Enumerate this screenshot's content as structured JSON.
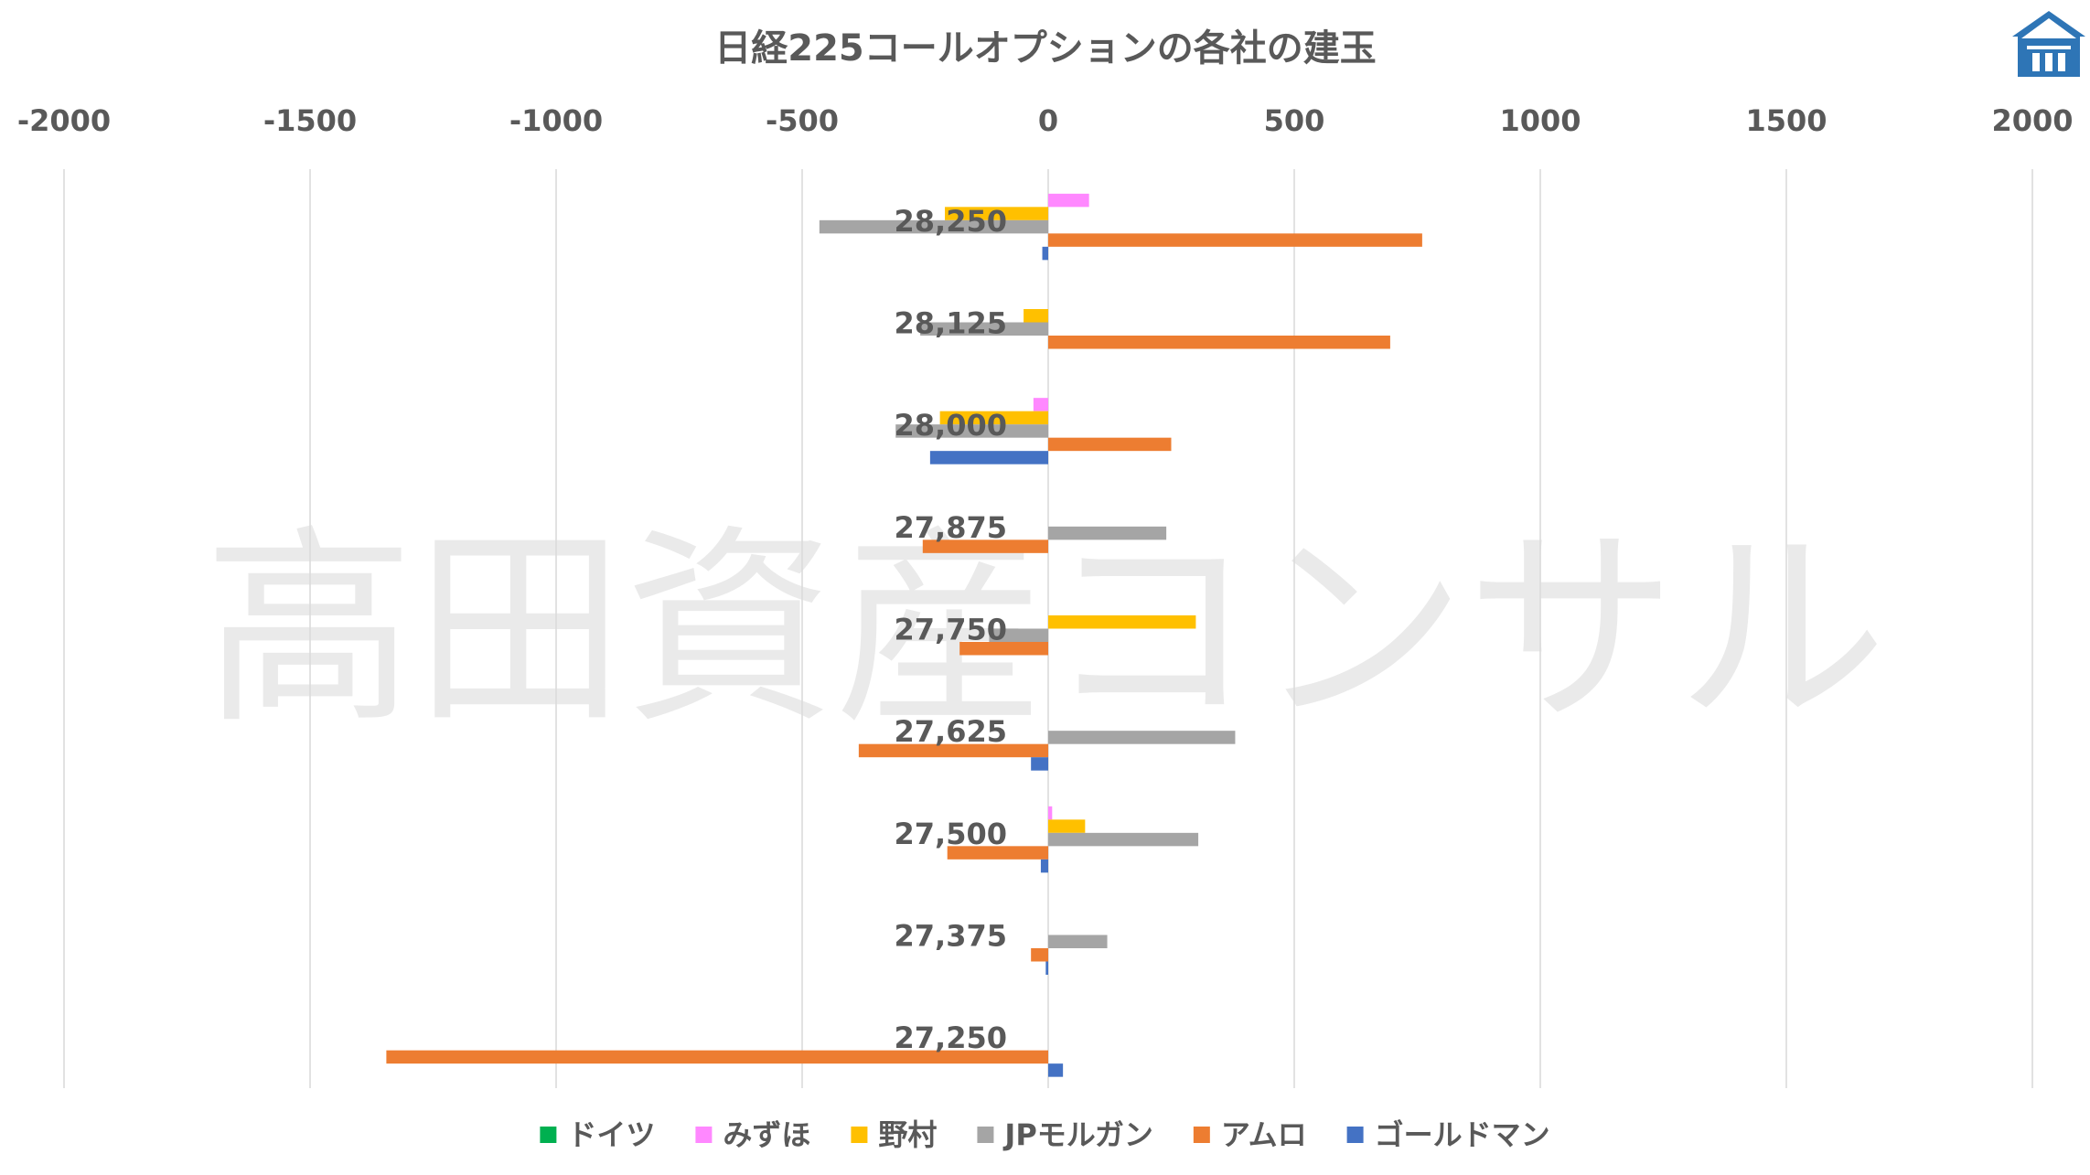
{
  "chart_data": {
    "type": "bar",
    "orientation": "horizontal",
    "title": "日経225コールオプションの各社の建玉",
    "xlim": [
      -2000,
      2000
    ],
    "x_ticks": [
      "-2000",
      "-1500",
      "-1000",
      "-500",
      "0",
      "500",
      "1000",
      "1500",
      "2000"
    ],
    "x_tick_values": [
      -2000,
      -1500,
      -1000,
      -500,
      0,
      500,
      1000,
      1500,
      2000
    ],
    "categories": [
      "28,250",
      "28,125",
      "28,000",
      "27,875",
      "27,750",
      "27,625",
      "27,500",
      "27,375",
      "27,250"
    ],
    "series": [
      {
        "name": "ドイツ",
        "color": "#00b050",
        "values": [
          0,
          0,
          0,
          0,
          0,
          0,
          0,
          0,
          0
        ]
      },
      {
        "name": "みずほ",
        "color": "#ff88ff",
        "values": [
          83,
          0,
          -30,
          0,
          0,
          0,
          8,
          0,
          0
        ]
      },
      {
        "name": "野村",
        "color": "#ffc000",
        "values": [
          -210,
          -50,
          -220,
          0,
          300,
          0,
          75,
          0,
          0
        ]
      },
      {
        "name": "JPモルガン",
        "color": "#a5a5a5",
        "values": [
          -465,
          -260,
          -310,
          240,
          -120,
          380,
          305,
          120,
          0
        ]
      },
      {
        "name": "アムロ",
        "color": "#ed7d31",
        "values": [
          760,
          695,
          250,
          -255,
          -180,
          -385,
          -205,
          -35,
          -1345
        ]
      },
      {
        "name": "ゴールドマン",
        "color": "#4472c4",
        "values": [
          -12,
          0,
          -240,
          0,
          0,
          -35,
          -15,
          -5,
          30
        ]
      }
    ],
    "grid": "vertical",
    "legend_position": "bottom"
  },
  "watermark": {
    "text": "高田資産コンサル"
  },
  "logo": {
    "label": "高田資産コンサル logo",
    "color": "#2e75b6"
  }
}
